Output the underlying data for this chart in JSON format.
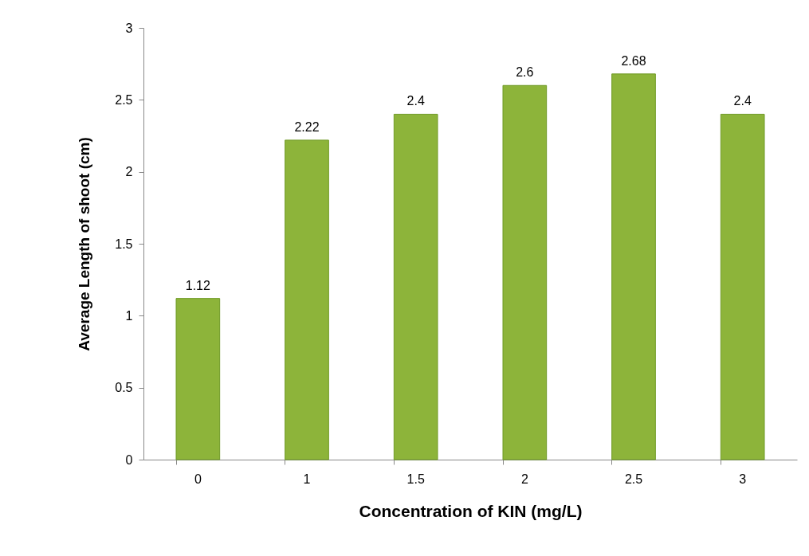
{
  "chart_data": {
    "type": "bar",
    "xlabel": "Concentration of KIN (mg/L)",
    "ylabel": "Average Length of shoot (cm)",
    "categories": [
      "0",
      "1",
      "1.5",
      "2",
      "2.5",
      "3"
    ],
    "values": [
      1.12,
      2.22,
      2.4,
      2.6,
      2.68,
      2.4
    ],
    "color": "#8db43a",
    "ylim": [
      0,
      3
    ],
    "yticks": [
      0,
      0.5,
      1,
      1.5,
      2,
      2.5,
      3
    ],
    "grid": false,
    "data_labels": true
  }
}
